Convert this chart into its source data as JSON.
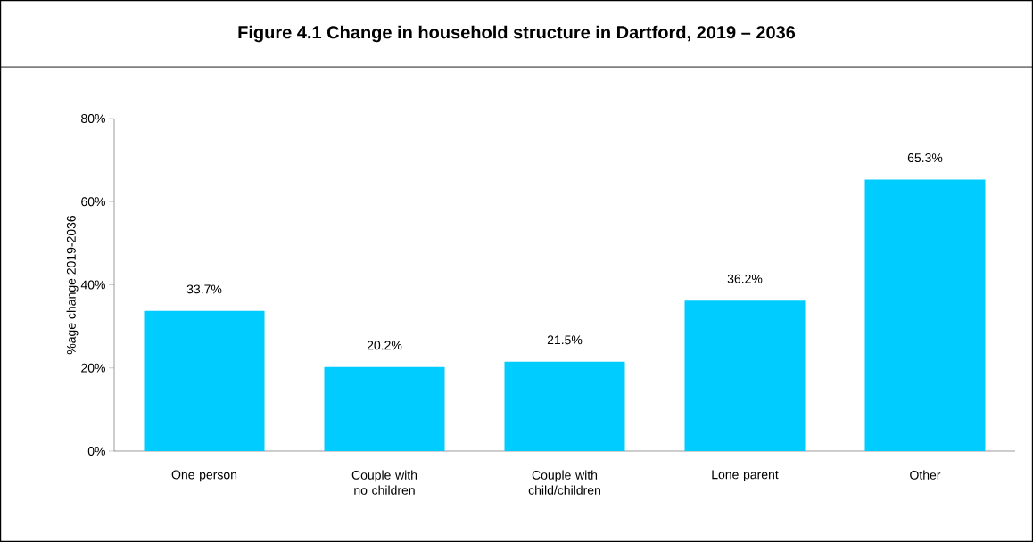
{
  "chart_data": {
    "type": "bar",
    "title": "Figure 4.1 Change in household structure in Dartford, 2019 – 2036",
    "ylabel": "%age change 2019-2036",
    "categories": [
      "One person",
      "Couple with no children",
      "Couple with child/children",
      "Lone parent",
      "Other"
    ],
    "values": [
      33.7,
      20.2,
      21.5,
      36.2,
      65.3
    ],
    "value_labels": [
      "33.7%",
      "20.2%",
      "21.5%",
      "36.2%",
      "65.3%"
    ],
    "color": "#00ccff",
    "ylim": [
      0,
      80
    ],
    "yticks": [
      {
        "value": 0,
        "label": "0%"
      },
      {
        "value": 20,
        "label": "20%"
      },
      {
        "value": 40,
        "label": "40%"
      },
      {
        "value": 60,
        "label": "60%"
      },
      {
        "value": 80,
        "label": "80%"
      }
    ],
    "grid": false
  }
}
